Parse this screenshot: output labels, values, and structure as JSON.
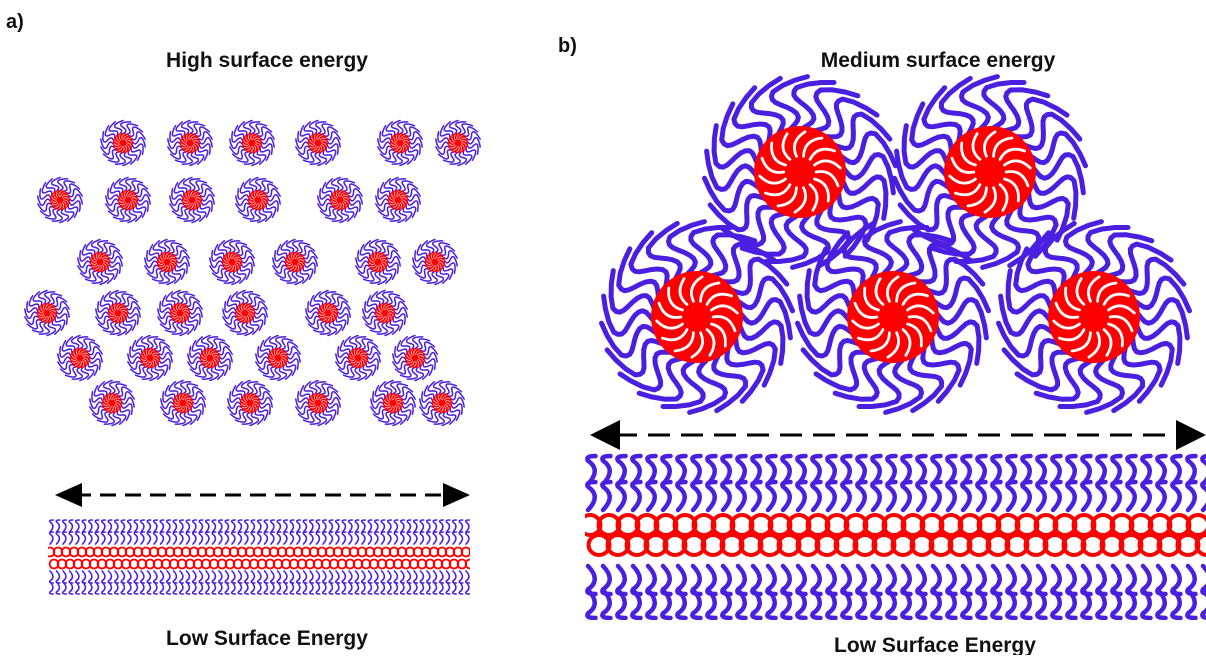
{
  "panel_a": {
    "label": "a)",
    "top_title": "High surface energy",
    "bottom_title": "Low Surface Energy"
  },
  "panel_b": {
    "label": "b)",
    "top_title": "Medium surface energy",
    "bottom_title": "Low Surface Energy"
  }
}
